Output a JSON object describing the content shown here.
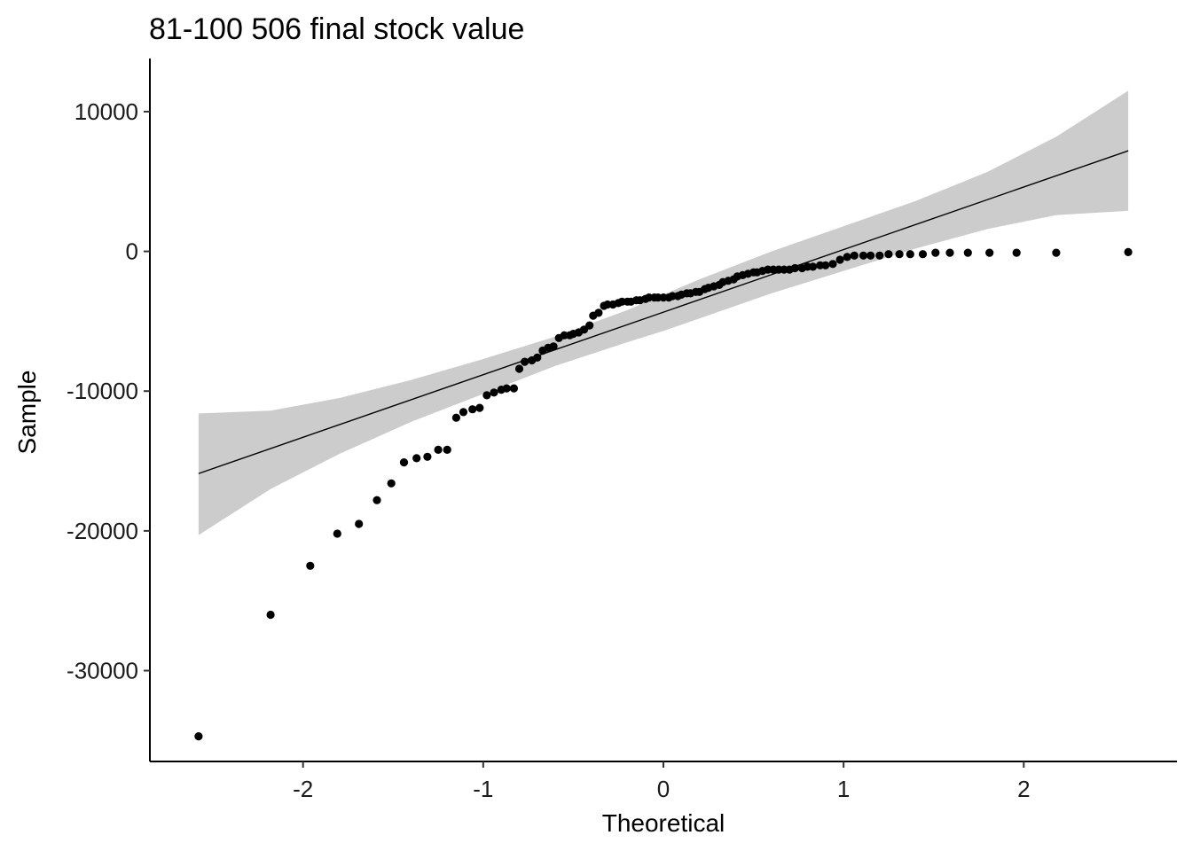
{
  "chart_data": {
    "type": "scatter",
    "title": "81-100 506 final stock value",
    "xlabel": "Theoretical",
    "ylabel": "Sample",
    "xlim": [
      -2.85,
      2.85
    ],
    "ylim": [
      -36500,
      13800
    ],
    "x_ticks": [
      {
        "value": -2,
        "label": "-2"
      },
      {
        "value": -1,
        "label": "-1"
      },
      {
        "value": 0,
        "label": "0"
      },
      {
        "value": 1,
        "label": "1"
      },
      {
        "value": 2,
        "label": "2"
      }
    ],
    "y_ticks": [
      {
        "value": -30000,
        "label": "-30000"
      },
      {
        "value": -20000,
        "label": "-20000"
      },
      {
        "value": -10000,
        "label": "-10000"
      },
      {
        "value": 0,
        "label": "0"
      },
      {
        "value": 10000,
        "label": "10000"
      }
    ],
    "grid": false,
    "point_color": "#000000",
    "band_color": "#cccccc",
    "reference_line": {
      "x": [
        -2.58,
        2.58
      ],
      "y": [
        -15900,
        7200
      ]
    },
    "confidence_band": {
      "x": [
        -2.58,
        -2.18,
        -1.8,
        -1.4,
        -1.0,
        -0.6,
        -0.2,
        0.0,
        0.2,
        0.6,
        1.0,
        1.4,
        1.8,
        2.18,
        2.58
      ],
      "upper": [
        -11600,
        -11400,
        -10500,
        -9200,
        -7700,
        -6100,
        -4200,
        -3100,
        -2000,
        0,
        1800,
        3600,
        5700,
        8200,
        11500
      ],
      "lower": [
        -20300,
        -17000,
        -14500,
        -12200,
        -10200,
        -8200,
        -6500,
        -5700,
        -4800,
        -3000,
        -1400,
        200,
        1600,
        2600,
        2900
      ]
    },
    "points": {
      "x": [
        -2.58,
        -2.18,
        -1.96,
        -1.81,
        -1.69,
        -1.59,
        -1.51,
        -1.44,
        -1.37,
        -1.31,
        -1.25,
        -1.2,
        -1.15,
        -1.11,
        -1.06,
        -1.02,
        -0.98,
        -0.94,
        -0.9,
        -0.87,
        -0.83,
        -0.8,
        -0.77,
        -0.73,
        -0.7,
        -0.67,
        -0.64,
        -0.61,
        -0.58,
        -0.55,
        -0.52,
        -0.5,
        -0.47,
        -0.44,
        -0.41,
        -0.39,
        -0.36,
        -0.33,
        -0.31,
        -0.28,
        -0.25,
        -0.23,
        -0.2,
        -0.18,
        -0.15,
        -0.13,
        -0.1,
        -0.08,
        -0.05,
        -0.03,
        0.0,
        0.03,
        0.05,
        0.08,
        0.1,
        0.13,
        0.15,
        0.18,
        0.2,
        0.23,
        0.25,
        0.28,
        0.31,
        0.33,
        0.36,
        0.39,
        0.41,
        0.44,
        0.47,
        0.5,
        0.52,
        0.55,
        0.58,
        0.61,
        0.64,
        0.67,
        0.7,
        0.73,
        0.77,
        0.8,
        0.83,
        0.87,
        0.9,
        0.94,
        0.98,
        1.02,
        1.06,
        1.11,
        1.15,
        1.2,
        1.25,
        1.31,
        1.37,
        1.44,
        1.51,
        1.59,
        1.69,
        1.81,
        1.96,
        2.18,
        2.58
      ],
      "y": [
        -34700,
        -26000,
        -22500,
        -20200,
        -19500,
        -17800,
        -16600,
        -15100,
        -14800,
        -14700,
        -14200,
        -14200,
        -11900,
        -11500,
        -11300,
        -11200,
        -10300,
        -10100,
        -9900,
        -9800,
        -9800,
        -8400,
        -7900,
        -7800,
        -7600,
        -7100,
        -6900,
        -6800,
        -6200,
        -6000,
        -6000,
        -5900,
        -5800,
        -5600,
        -5300,
        -4600,
        -4400,
        -3900,
        -3800,
        -3800,
        -3700,
        -3600,
        -3600,
        -3600,
        -3500,
        -3500,
        -3400,
        -3300,
        -3300,
        -3300,
        -3300,
        -3300,
        -3200,
        -3200,
        -3100,
        -3000,
        -3000,
        -2900,
        -2900,
        -2700,
        -2600,
        -2500,
        -2400,
        -2200,
        -2100,
        -2000,
        -1800,
        -1700,
        -1600,
        -1500,
        -1500,
        -1400,
        -1300,
        -1300,
        -1300,
        -1300,
        -1300,
        -1200,
        -1200,
        -1100,
        -1100,
        -1000,
        -1000,
        -900,
        -600,
        -400,
        -300,
        -300,
        -300,
        -300,
        -200,
        -200,
        -200,
        -200,
        -100,
        -100,
        -100,
        -100,
        -100,
        -100,
        -50
      ]
    }
  }
}
